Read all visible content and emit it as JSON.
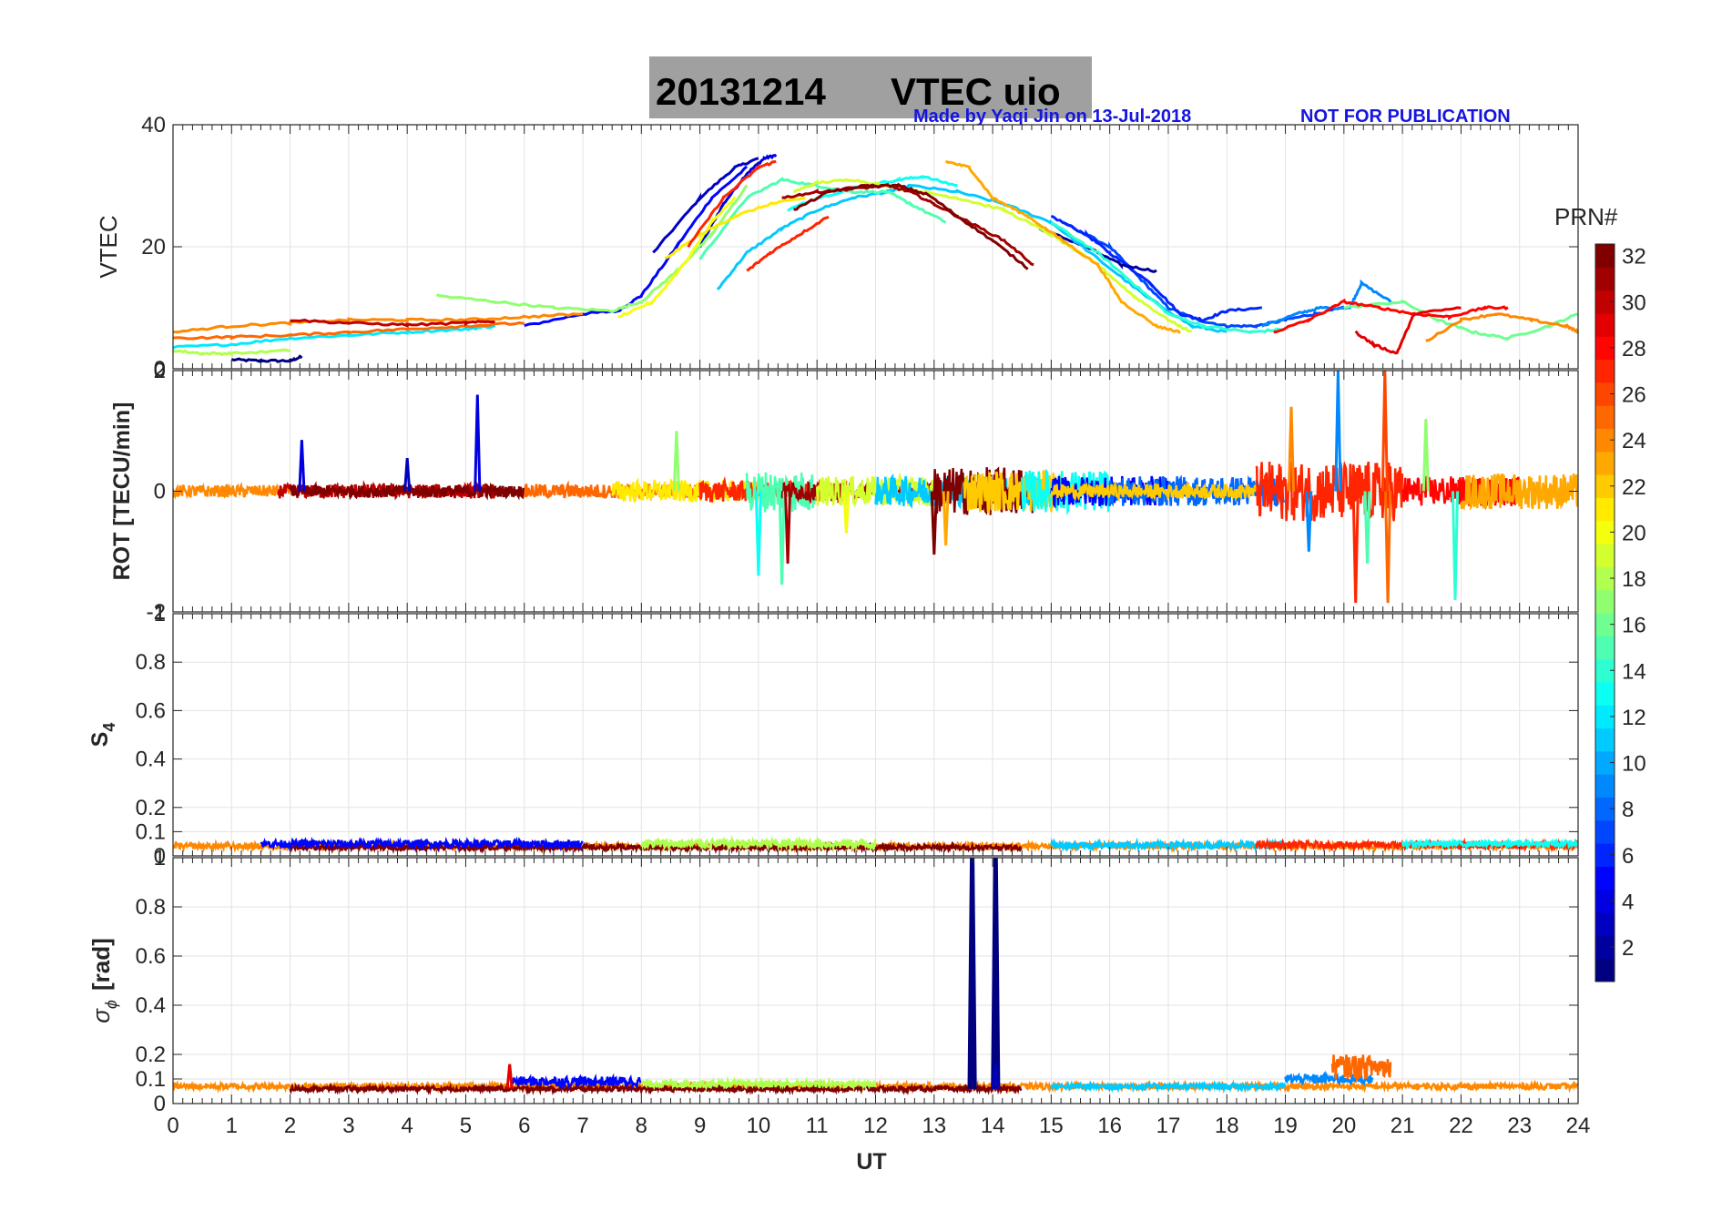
{
  "figure": {
    "title_date": "20131214",
    "title_text": "VTEC  uio",
    "credit": "Made by Yaqi Jin on 13-Jul-2018",
    "notice": "NOT FOR PUBLICATION",
    "title_box_color": "#a0a0a0"
  },
  "chart_data": [
    {
      "type": "line",
      "panel": "vtec",
      "title": "",
      "ylabel": "VTEC",
      "xlim": [
        0,
        24
      ],
      "ylim": [
        0,
        40
      ],
      "yticks": [
        {
          "v": 20,
          "label": "20"
        },
        {
          "v": 40,
          "label": "40"
        }
      ],
      "yticks_extra_label": "0",
      "series": [
        {
          "prn": 1,
          "x": [
            1.0,
            1.5,
            2.0,
            2.2
          ],
          "y": [
            1.5,
            1.3,
            1.3,
            2.0
          ]
        },
        {
          "prn": 4,
          "x": [
            9.0,
            9.4,
            9.8,
            10.1,
            10.3
          ],
          "y": [
            20,
            27,
            32,
            34.5,
            35
          ]
        },
        {
          "prn": 3,
          "x": [
            8.2,
            9.0,
            9.6,
            10.0
          ],
          "y": [
            19,
            28,
            33,
            34.5
          ]
        },
        {
          "prn": 5,
          "x": [
            6.0,
            7.0,
            7.6,
            8.0,
            8.6,
            9.2,
            9.8
          ],
          "y": [
            7,
            9,
            9.5,
            12,
            20,
            28,
            33
          ]
        },
        {
          "prn": 7,
          "x": [
            15.2,
            16.0,
            16.5,
            17.0,
            17.5,
            18.0,
            18.5,
            19.0,
            19.5,
            20.0
          ],
          "y": [
            24,
            20,
            15,
            10,
            8,
            7,
            7,
            8,
            9,
            10
          ]
        },
        {
          "prn": 6,
          "x": [
            15.0,
            15.6,
            16.0,
            16.7,
            17.2,
            17.6,
            18.0,
            18.6
          ],
          "y": [
            25,
            22,
            19,
            14,
            9,
            8,
            9.5,
            10
          ]
        },
        {
          "prn": 2,
          "x": [
            14.8,
            15.6,
            16.2,
            16.8
          ],
          "y": [
            23,
            20,
            17,
            16
          ]
        },
        {
          "prn": 9,
          "x": [
            18.6,
            19.2,
            19.6,
            20.1,
            20.3,
            20.8
          ],
          "y": [
            7,
            9,
            10,
            10,
            14,
            11
          ]
        },
        {
          "prn": 11,
          "x": [
            9.3,
            9.8,
            10.4,
            11.0,
            11.6,
            12.2,
            12.6,
            13.4,
            14.2,
            15.0,
            15.8,
            16.6,
            17.4,
            18.0
          ],
          "y": [
            13,
            19,
            23,
            26,
            28,
            29,
            30,
            29,
            27,
            24,
            18,
            12,
            7,
            6
          ]
        },
        {
          "prn": 12,
          "x": [
            0.0,
            1.0,
            2.0,
            3.0,
            4.0,
            5.0,
            5.5
          ],
          "y": [
            3.5,
            4,
            5,
            5.5,
            6,
            6.5,
            7
          ]
        },
        {
          "prn": 13,
          "x": [
            10.5,
            11.0,
            11.8,
            12.4,
            12.8,
            13.4
          ],
          "y": [
            26,
            28,
            30,
            31,
            31.5,
            30
          ]
        },
        {
          "prn": 15,
          "x": [
            9.0,
            9.8,
            10.4,
            11.0,
            11.6,
            12.2,
            12.6,
            13.2
          ],
          "y": [
            18,
            28,
            31,
            30,
            29,
            29,
            27,
            24
          ]
        },
        {
          "prn": 14,
          "x": [
            15.0,
            15.8,
            16.4,
            17.0,
            17.6,
            18.4,
            19.0
          ],
          "y": [
            24,
            19,
            14,
            9,
            7,
            6,
            6.5
          ]
        },
        {
          "prn": 17,
          "x": [
            4.5,
            5.5,
            6.5,
            7.5,
            8.0,
            8.6,
            9.2,
            9.8
          ],
          "y": [
            12,
            11,
            10,
            9.5,
            11,
            16,
            22,
            30
          ]
        },
        {
          "prn": 16,
          "x": [
            20.0,
            21.0,
            21.6,
            22.2,
            22.8,
            23.5,
            24.0
          ],
          "y": [
            10,
            11,
            8,
            6,
            5,
            7,
            9
          ]
        },
        {
          "prn": 18,
          "x": [
            0.0,
            0.5,
            1.0,
            2.0
          ],
          "y": [
            3.0,
            2.5,
            2.5,
            3.0
          ]
        },
        {
          "prn": 19,
          "x": [
            10.6,
            11.0,
            11.6,
            12.2,
            12.8,
            13.4,
            14.2,
            15.0,
            15.8,
            16.4,
            17.0,
            17.4
          ],
          "y": [
            29,
            30.5,
            31,
            30,
            29,
            28,
            26,
            22,
            17,
            12,
            8,
            6
          ]
        },
        {
          "prn": 20,
          "x": [
            7.6,
            8.2,
            8.8,
            9.2,
            9.6
          ],
          "y": [
            8.5,
            11,
            18,
            24,
            28
          ]
        },
        {
          "prn": 21,
          "x": [
            8.4,
            9.0,
            9.6,
            10.2,
            10.8
          ],
          "y": [
            18,
            22,
            25,
            27,
            28
          ]
        },
        {
          "prn": 23,
          "x": [
            13.2,
            13.6,
            14.0,
            14.6,
            15.2,
            15.8,
            16.2,
            16.8,
            17.2
          ],
          "y": [
            34,
            33,
            28,
            25,
            21,
            17,
            11,
            7,
            6
          ]
        },
        {
          "prn": 24,
          "x": [
            0.0,
            1.0,
            2.0,
            3.0,
            4.0,
            5.0,
            6.0,
            7.0
          ],
          "y": [
            6,
            7,
            7.5,
            8,
            8,
            8,
            8.5,
            9
          ]
        },
        {
          "prn": 24,
          "x": [
            21.4,
            22.0,
            22.6,
            23.2,
            23.8,
            24.0
          ],
          "y": [
            4.5,
            8,
            9,
            8,
            7,
            6
          ]
        },
        {
          "prn": 25,
          "x": [
            0.0,
            1.0,
            2.0,
            3.0,
            4.0,
            5.0,
            6.0
          ],
          "y": [
            5,
            5.2,
            5.5,
            6,
            6.5,
            7,
            7.5
          ]
        },
        {
          "prn": 27,
          "x": [
            8.8,
            9.4,
            10.0,
            10.3
          ],
          "y": [
            20,
            28,
            33,
            34
          ]
        },
        {
          "prn": 28,
          "x": [
            18.8,
            19.4,
            20.0,
            20.6,
            21.2,
            21.8,
            22.4,
            22.8
          ],
          "y": [
            6,
            8,
            11,
            10,
            9,
            8.5,
            10,
            10
          ]
        },
        {
          "prn": 29,
          "x": [
            20.2,
            20.5,
            20.9,
            21.2,
            22.0
          ],
          "y": [
            6,
            4,
            2.5,
            9,
            10
          ]
        },
        {
          "prn": 27,
          "x": [
            9.8,
            10.2,
            10.7,
            11.2
          ],
          "y": [
            16,
            19,
            22,
            25
          ]
        },
        {
          "prn": 30,
          "x": [
            2.0,
            3.0,
            4.0,
            5.0,
            5.5
          ],
          "y": [
            8.0,
            7.5,
            7.2,
            7.5,
            7.8
          ]
        },
        {
          "prn": 31,
          "x": [
            10.4,
            11.0,
            11.6,
            12.2,
            12.6,
            13.0,
            13.6,
            14.2,
            14.7
          ],
          "y": [
            28,
            29,
            29.5,
            30,
            29,
            27,
            24,
            21,
            17
          ]
        },
        {
          "prn": 32,
          "x": [
            10.6,
            11.2,
            11.8,
            12.4,
            12.9,
            13.4,
            14.0,
            14.6
          ],
          "y": [
            26,
            29,
            30,
            30,
            28.5,
            25,
            21,
            16.5
          ]
        }
      ]
    },
    {
      "type": "line",
      "panel": "rot",
      "title": "",
      "ylabel": "ROT [TECU/min]",
      "xlim": [
        0,
        24
      ],
      "ylim": [
        -2,
        2
      ],
      "yticks": [
        {
          "v": 0,
          "label": "0"
        }
      ],
      "ytick_top_label": "2",
      "ytick_bottom_label": "-2",
      "overlay_top_label": "0",
      "overlay_bottom_label": "-1",
      "noise_segments": [
        {
          "prn": 24,
          "x0": 0.0,
          "x1": 2.0,
          "amp": 0.1
        },
        {
          "prn": 30,
          "x0": 1.8,
          "x1": 5.5,
          "amp": 0.12
        },
        {
          "prn": 32,
          "x0": 2.0,
          "x1": 6.0,
          "amp": 0.1
        },
        {
          "prn": 25,
          "x0": 6.0,
          "x1": 9.0,
          "amp": 0.12
        },
        {
          "prn": 21,
          "x0": 7.5,
          "x1": 10.0,
          "amp": 0.18
        },
        {
          "prn": 27,
          "x0": 9.0,
          "x1": 11.5,
          "amp": 0.18
        },
        {
          "prn": 15,
          "x0": 9.8,
          "x1": 11.0,
          "amp": 0.35
        },
        {
          "prn": 31,
          "x0": 10.4,
          "x1": 13.0,
          "amp": 0.15
        },
        {
          "prn": 19,
          "x0": 11.0,
          "x1": 13.0,
          "amp": 0.25
        },
        {
          "prn": 11,
          "x0": 12.0,
          "x1": 15.0,
          "amp": 0.25
        },
        {
          "prn": 32,
          "x0": 13.0,
          "x1": 14.7,
          "amp": 0.4
        },
        {
          "prn": 22,
          "x0": 13.5,
          "x1": 15.2,
          "amp": 0.35
        },
        {
          "prn": 13,
          "x0": 14.5,
          "x1": 16.0,
          "amp": 0.35
        },
        {
          "prn": 5,
          "x0": 15.0,
          "x1": 17.0,
          "amp": 0.25
        },
        {
          "prn": 8,
          "x0": 16.0,
          "x1": 19.0,
          "amp": 0.25
        },
        {
          "prn": 22,
          "x0": 15.0,
          "x1": 18.5,
          "amp": 0.12
        },
        {
          "prn": 27,
          "x0": 18.5,
          "x1": 21.0,
          "amp": 0.5
        },
        {
          "prn": 28,
          "x0": 21.0,
          "x1": 23.0,
          "amp": 0.25
        },
        {
          "prn": 23,
          "x0": 22.0,
          "x1": 24.0,
          "amp": 0.3
        }
      ],
      "spikes": [
        {
          "prn": 4,
          "x": 2.2,
          "y": 0.85
        },
        {
          "prn": 3,
          "x": 4.0,
          "y": 0.55
        },
        {
          "prn": 4,
          "x": 5.2,
          "y": 1.6
        },
        {
          "prn": 17,
          "x": 8.6,
          "y": 1.0
        },
        {
          "prn": 13,
          "x": 10.0,
          "y": -1.4
        },
        {
          "prn": 15,
          "x": 10.4,
          "y": -1.55
        },
        {
          "prn": 31,
          "x": 10.5,
          "y": -1.2
        },
        {
          "prn": 20,
          "x": 11.5,
          "y": -0.7
        },
        {
          "prn": 32,
          "x": 13.0,
          "y": -1.05
        },
        {
          "prn": 23,
          "x": 13.2,
          "y": -0.9
        },
        {
          "prn": 24,
          "x": 19.1,
          "y": 1.4
        },
        {
          "prn": 9,
          "x": 19.4,
          "y": -1.0
        },
        {
          "prn": 9,
          "x": 19.9,
          "y": 2.0
        },
        {
          "prn": 27,
          "x": 20.2,
          "y": -1.85
        },
        {
          "prn": 15,
          "x": 20.4,
          "y": -1.2
        },
        {
          "prn": 26,
          "x": 20.7,
          "y": 2.0
        },
        {
          "prn": 25,
          "x": 20.75,
          "y": -1.85
        },
        {
          "prn": 17,
          "x": 21.4,
          "y": 1.2
        },
        {
          "prn": 14,
          "x": 21.9,
          "y": -1.8
        }
      ]
    },
    {
      "type": "line",
      "panel": "s4",
      "title": "",
      "ylabel": "S",
      "ylabel_sub": "4",
      "xlim": [
        0,
        24
      ],
      "ylim": [
        0,
        1
      ],
      "yticks": [
        {
          "v": 0.1,
          "label": "0.1"
        },
        {
          "v": 0.2,
          "label": "0.2"
        },
        {
          "v": 0.4,
          "label": "0.4"
        },
        {
          "v": 0.6,
          "label": "0.6"
        },
        {
          "v": 0.8,
          "label": "0.8"
        },
        {
          "v": 1.0,
          "label": "1"
        }
      ],
      "ytick_bottom_label": "0",
      "noise_segments": [
        {
          "prn": 24,
          "x0": 0.0,
          "x1": 24.0,
          "amp": 0.012,
          "base": 0.04
        },
        {
          "prn": 32,
          "x0": 2.0,
          "x1": 14.5,
          "amp": 0.01,
          "base": 0.035
        },
        {
          "prn": 5,
          "x0": 1.5,
          "x1": 7.0,
          "amp": 0.015,
          "base": 0.05
        },
        {
          "prn": 18,
          "x0": 8.0,
          "x1": 12.0,
          "amp": 0.02,
          "base": 0.05
        },
        {
          "prn": 11,
          "x0": 15.0,
          "x1": 19.0,
          "amp": 0.015,
          "base": 0.045
        },
        {
          "prn": 27,
          "x0": 18.5,
          "x1": 24.0,
          "amp": 0.015,
          "base": 0.045
        },
        {
          "prn": 13,
          "x0": 21.0,
          "x1": 24.0,
          "amp": 0.012,
          "base": 0.05
        }
      ]
    },
    {
      "type": "line",
      "panel": "sigma_phi",
      "title": "",
      "ylabel": "σ",
      "ylabel_sub": "ϕ",
      "ylabel_unit": "[rad]",
      "xlabel": "UT",
      "xlim": [
        0,
        24
      ],
      "ylim": [
        0,
        1
      ],
      "xticks": [
        0,
        1,
        2,
        3,
        4,
        5,
        6,
        7,
        8,
        9,
        10,
        11,
        12,
        13,
        14,
        15,
        16,
        17,
        18,
        19,
        20,
        21,
        22,
        23,
        24
      ],
      "yticks": [
        {
          "v": 0,
          "label": "0"
        },
        {
          "v": 0.1,
          "label": "0.1"
        },
        {
          "v": 0.2,
          "label": "0.2"
        },
        {
          "v": 0.4,
          "label": "0.4"
        },
        {
          "v": 0.6,
          "label": "0.6"
        },
        {
          "v": 0.8,
          "label": "0.8"
        },
        {
          "v": 1.0,
          "label": "1"
        }
      ],
      "noise_segments": [
        {
          "prn": 24,
          "x0": 0.0,
          "x1": 24.0,
          "amp": 0.012,
          "base": 0.07
        },
        {
          "prn": 32,
          "x0": 2.0,
          "x1": 14.5,
          "amp": 0.01,
          "base": 0.06
        },
        {
          "prn": 5,
          "x0": 5.8,
          "x1": 8.0,
          "amp": 0.02,
          "base": 0.09
        },
        {
          "prn": 18,
          "x0": 8.0,
          "x1": 12.0,
          "amp": 0.015,
          "base": 0.08
        },
        {
          "prn": 11,
          "x0": 15.0,
          "x1": 19.0,
          "amp": 0.012,
          "base": 0.07
        },
        {
          "prn": 9,
          "x0": 19.0,
          "x1": 20.5,
          "amp": 0.02,
          "base": 0.1
        },
        {
          "prn": 25,
          "x0": 19.8,
          "x1": 20.8,
          "amp": 0.05,
          "base": 0.15
        }
      ],
      "spikes": [
        {
          "prn": 1,
          "x": 13.65,
          "y": 1.0
        },
        {
          "prn": 1,
          "x": 14.05,
          "y": 1.0
        },
        {
          "prn": 29,
          "x": 5.75,
          "y": 0.16
        },
        {
          "prn": 3,
          "x": 14.05,
          "y": 0.16
        }
      ]
    }
  ],
  "colorbar": {
    "title": "PRN#",
    "min": 1,
    "max": 32,
    "ticks": [
      "2",
      "4",
      "6",
      "8",
      "10",
      "12",
      "14",
      "16",
      "18",
      "20",
      "22",
      "24",
      "26",
      "28",
      "30",
      "32"
    ]
  }
}
